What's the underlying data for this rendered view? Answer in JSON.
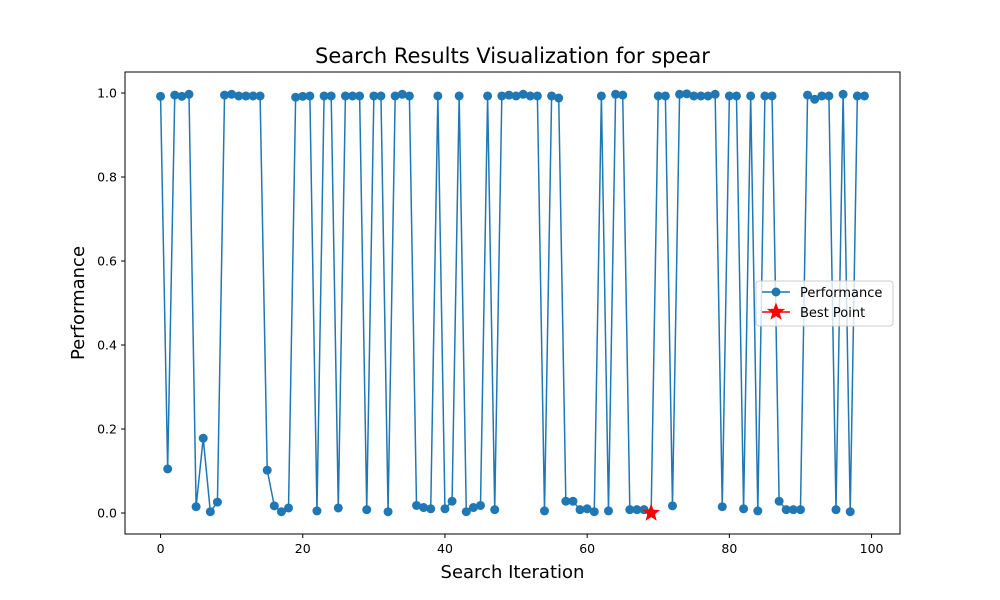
{
  "chart_data": {
    "type": "line",
    "title": "Search Results Visualization for spear",
    "xlabel": "Search Iteration",
    "ylabel": "Performance",
    "xlim": [
      -5,
      104
    ],
    "ylim": [
      -0.05,
      1.05
    ],
    "xticks": [
      0,
      20,
      40,
      60,
      80,
      100
    ],
    "yticks": [
      0.0,
      0.2,
      0.4,
      0.6,
      0.8,
      1.0
    ],
    "grid": false,
    "legend_position": "center-right",
    "colors": {
      "series": "#1f77b4",
      "best": "#ff0000"
    },
    "series": [
      {
        "name": "Performance",
        "x": [
          0,
          1,
          2,
          3,
          4,
          5,
          6,
          7,
          8,
          9,
          10,
          11,
          12,
          13,
          14,
          15,
          16,
          17,
          18,
          19,
          20,
          21,
          22,
          23,
          24,
          25,
          26,
          27,
          28,
          29,
          30,
          31,
          32,
          33,
          34,
          35,
          36,
          37,
          38,
          39,
          40,
          41,
          42,
          43,
          44,
          45,
          46,
          47,
          48,
          49,
          50,
          51,
          52,
          53,
          54,
          55,
          56,
          57,
          58,
          59,
          60,
          61,
          62,
          63,
          64,
          65,
          66,
          67,
          68,
          69,
          70,
          71,
          72,
          73,
          74,
          75,
          76,
          77,
          78,
          79,
          80,
          81,
          82,
          83,
          84,
          85,
          86,
          87,
          88,
          89,
          90,
          91,
          92,
          93,
          94,
          95,
          96,
          97,
          98,
          99
        ],
        "values": [
          0.992,
          0.105,
          0.995,
          0.992,
          0.997,
          0.015,
          0.178,
          0.003,
          0.026,
          0.995,
          0.997,
          0.993,
          0.993,
          0.993,
          0.993,
          0.102,
          0.017,
          0.003,
          0.012,
          0.99,
          0.992,
          0.993,
          0.005,
          0.993,
          0.993,
          0.012,
          0.993,
          0.993,
          0.993,
          0.008,
          0.993,
          0.993,
          0.003,
          0.993,
          0.997,
          0.993,
          0.018,
          0.013,
          0.01,
          0.993,
          0.01,
          0.028,
          0.993,
          0.003,
          0.013,
          0.018,
          0.993,
          0.008,
          0.993,
          0.995,
          0.993,
          0.997,
          0.993,
          0.993,
          0.005,
          0.993,
          0.988,
          0.028,
          0.028,
          0.008,
          0.01,
          0.003,
          0.993,
          0.005,
          0.997,
          0.995,
          0.008,
          0.008,
          0.008,
          0.0,
          0.993,
          0.993,
          0.017,
          0.997,
          0.998,
          0.993,
          0.993,
          0.993,
          0.997,
          0.015,
          0.993,
          0.993,
          0.01,
          0.993,
          0.005,
          0.993,
          0.993,
          0.028,
          0.008,
          0.008,
          0.008,
          0.995,
          0.985,
          0.993,
          0.993,
          0.008,
          0.997,
          0.003,
          0.993,
          0.993
        ]
      },
      {
        "name": "Best Point",
        "x": [
          69
        ],
        "values": [
          0.0
        ]
      }
    ]
  }
}
